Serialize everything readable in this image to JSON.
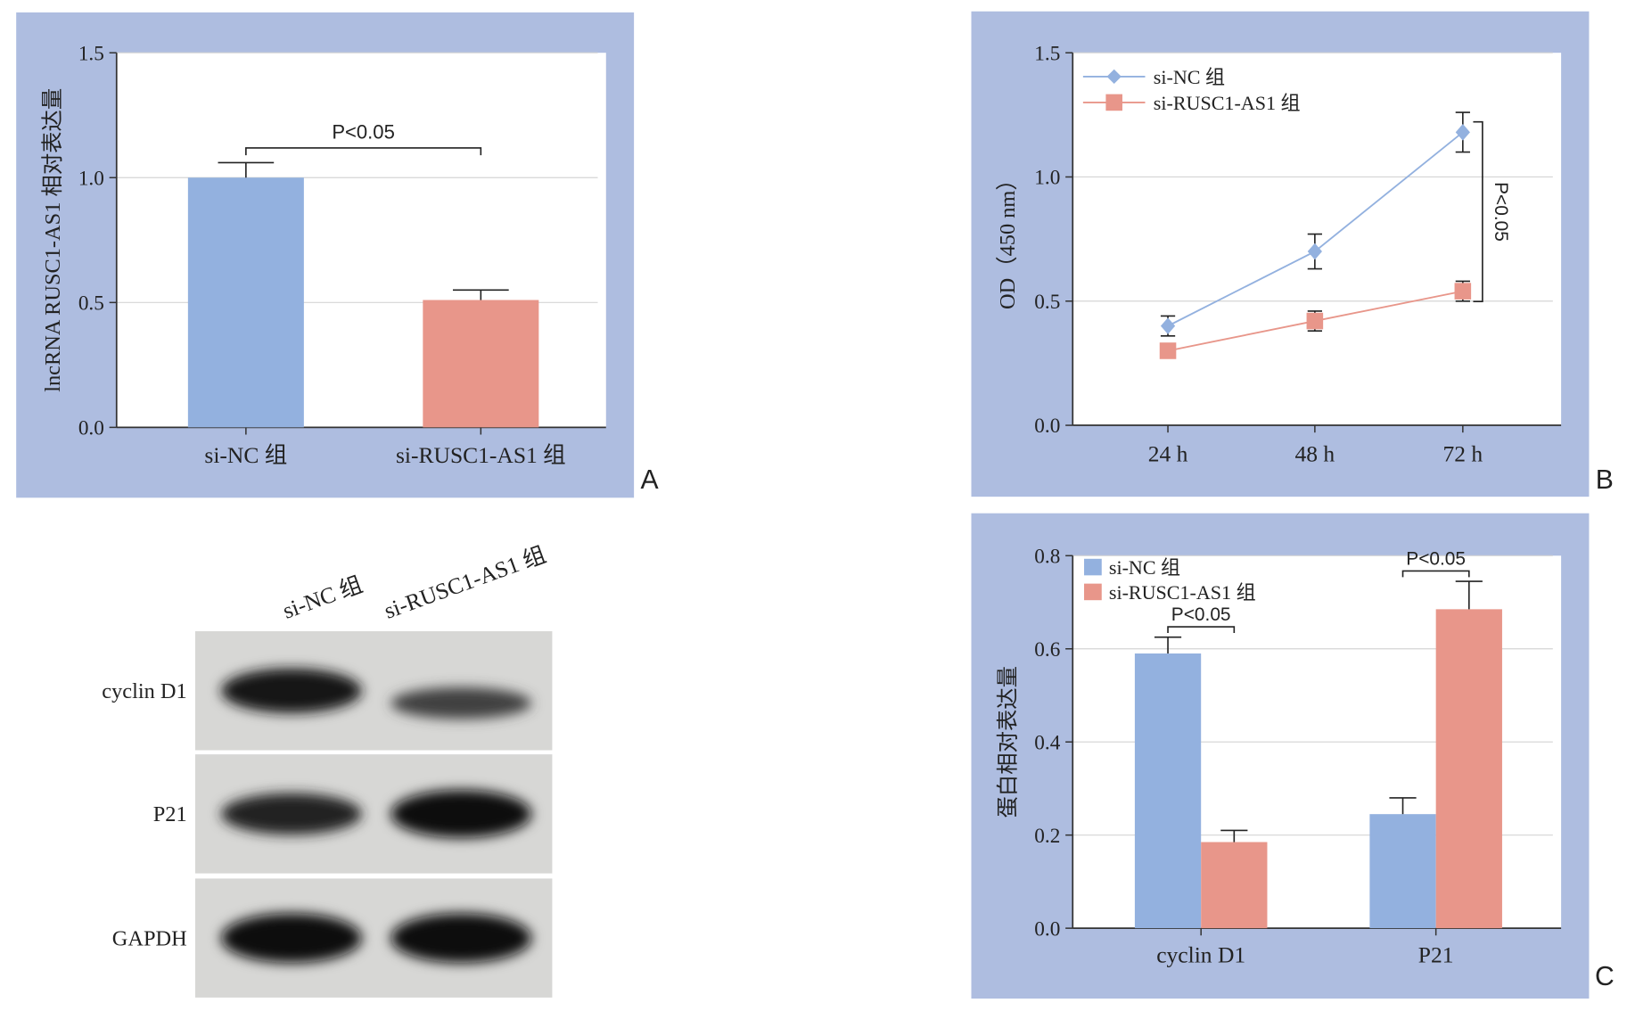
{
  "colors": {
    "frame": "#aebde0",
    "plot_bg": "#ffffff",
    "grid": "#d4d4d4",
    "axis": "#333333",
    "si_nc": "#93b1df",
    "si_rusc1": "#e8968a",
    "text": "#222222"
  },
  "panel_labels": {
    "a": "A",
    "b": "B",
    "c": "C"
  },
  "chart_data": [
    {
      "id": "A",
      "type": "bar",
      "categories": [
        "si-NC 组",
        "si-RUSC1-AS1 组"
      ],
      "values": [
        1.0,
        0.51
      ],
      "errors": [
        0.06,
        0.04
      ],
      "ylabel": "lncRNA RUSC1-AS1 相对表达量",
      "xlabel": "",
      "ylim": [
        0,
        1.5
      ],
      "yticks": [
        "0.0",
        "0.5",
        "1.0",
        "1.5"
      ],
      "grid": true,
      "annotations": [
        {
          "text": "P<0.05",
          "between": [
            0,
            1
          ]
        }
      ]
    },
    {
      "id": "B",
      "type": "line",
      "x": [
        "24 h",
        "48 h",
        "72 h"
      ],
      "series": [
        {
          "name": "si-NC 组",
          "values": [
            0.4,
            0.7,
            1.18
          ],
          "errors": [
            0.04,
            0.07,
            0.08
          ],
          "marker": "diamond"
        },
        {
          "name": "si-RUSC1-AS1 组",
          "values": [
            0.3,
            0.42,
            0.54
          ],
          "errors": [
            0.02,
            0.04,
            0.04
          ],
          "marker": "square"
        }
      ],
      "ylabel": "OD（450 nm）",
      "xlabel": "",
      "ylim": [
        0,
        1.5
      ],
      "yticks": [
        "0.0",
        "0.5",
        "1.0",
        "1.5"
      ],
      "grid": true,
      "legend": "top-left",
      "annotations": [
        {
          "text": "P<0.05",
          "at": "72 h"
        }
      ]
    },
    {
      "id": "C",
      "type": "bar",
      "categories": [
        "cyclin D1",
        "P21"
      ],
      "series": [
        {
          "name": "si-NC 组",
          "values": [
            0.59,
            0.245
          ],
          "errors": [
            0.035,
            0.035
          ]
        },
        {
          "name": "si-RUSC1-AS1 组",
          "values": [
            0.185,
            0.685
          ],
          "errors": [
            0.025,
            0.06
          ]
        }
      ],
      "ylabel": "蛋白相对表达量",
      "xlabel": "",
      "ylim": [
        0,
        0.8
      ],
      "yticks": [
        "0.0",
        "0.2",
        "0.4",
        "0.6",
        "0.8"
      ],
      "grid": true,
      "legend": "top-left",
      "annotations": [
        {
          "text": "P<0.05",
          "category": "cyclin D1"
        },
        {
          "text": "P<0.05",
          "category": "P21"
        }
      ]
    }
  ],
  "western_blot": {
    "lanes": [
      "si-NC 组",
      "si-RUSC1-AS1 组"
    ],
    "rows": [
      {
        "label": "cyclin D1",
        "intensity": [
          0.85,
          0.45
        ]
      },
      {
        "label": "P21",
        "intensity": [
          0.75,
          0.95
        ]
      },
      {
        "label": "GAPDH",
        "intensity": [
          1.0,
          1.0
        ]
      }
    ]
  }
}
